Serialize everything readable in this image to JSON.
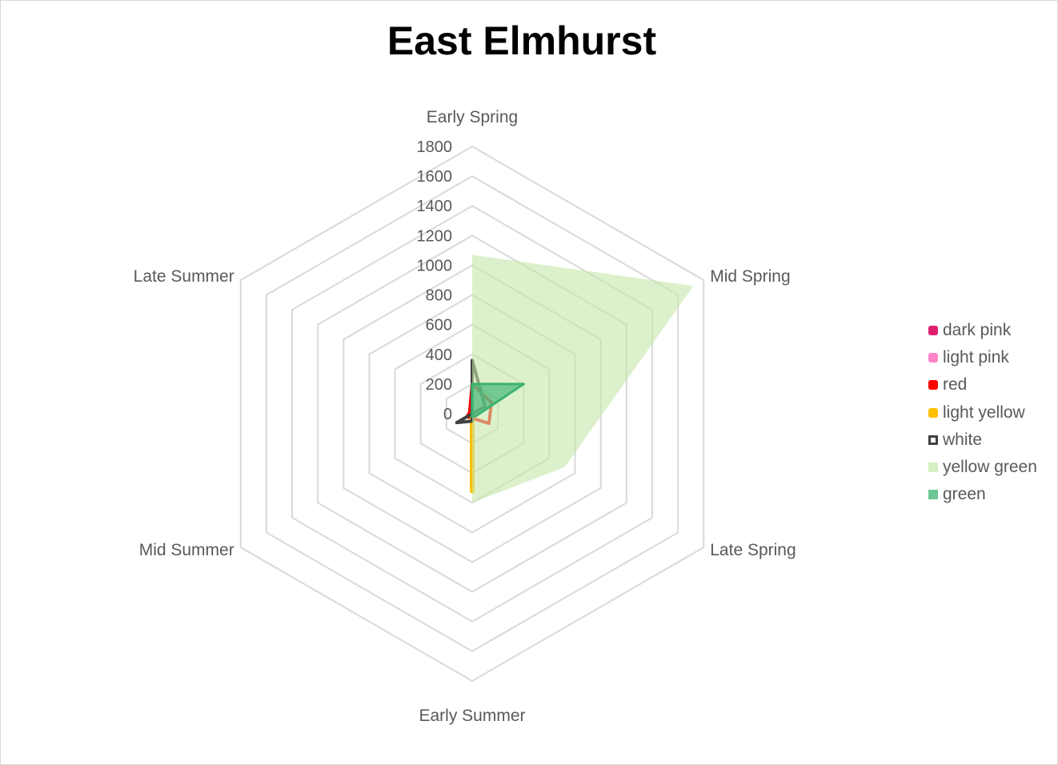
{
  "chart_data": {
    "type": "radar",
    "title": "East Elmhurst",
    "categories": [
      "Early Spring",
      "Mid Spring",
      "Late Spring",
      "Early Summer",
      "Mid Summer",
      "Late Summer"
    ],
    "ticks": [
      "0",
      "200",
      "400",
      "600",
      "800",
      "1000",
      "1200",
      "1600",
      "1400",
      "1800"
    ],
    "rlim": [
      0,
      1800
    ],
    "grid": true,
    "legend_position": "right",
    "series": [
      {
        "name": "dark pink",
        "color": "#E0206F",
        "style": "line",
        "values": [
          230,
          0,
          0,
          0,
          0,
          0
        ]
      },
      {
        "name": "light pink",
        "color": "#FF85C8",
        "style": "line",
        "values": [
          0,
          0,
          0,
          0,
          0,
          0
        ]
      },
      {
        "name": "red",
        "color": "#FF0000",
        "style": "line",
        "values": [
          200,
          150,
          130,
          30,
          40,
          20
        ]
      },
      {
        "name": "light yellow",
        "color": "#FFC000",
        "style": "line",
        "values": [
          0,
          0,
          0,
          520,
          0,
          0
        ]
      },
      {
        "name": "white",
        "color": "#404040",
        "style": "line",
        "values": [
          360,
          100,
          0,
          50,
          120,
          0
        ]
      },
      {
        "name": "yellow green",
        "color": "#C5E8A8",
        "style": "area",
        "values": [
          1070,
          1720,
          720,
          600,
          0,
          0
        ]
      },
      {
        "name": "green",
        "color": "#3CB371",
        "style": "area",
        "values": [
          200,
          400,
          30,
          20,
          0,
          0
        ]
      }
    ]
  }
}
